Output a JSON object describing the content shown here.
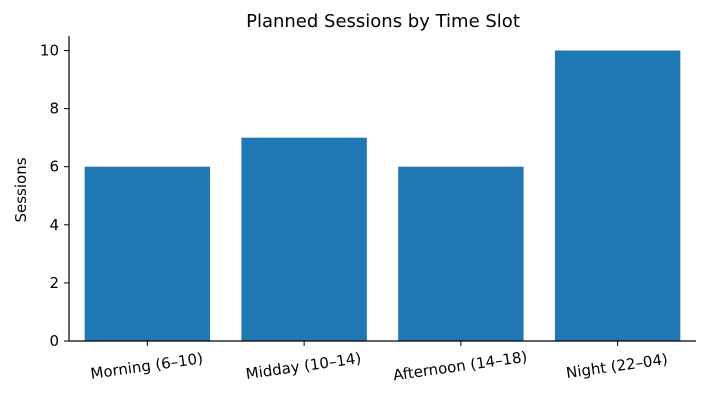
{
  "chart_data": {
    "type": "bar",
    "title": "Planned Sessions by Time Slot",
    "xlabel": "",
    "ylabel": "Sessions",
    "categories": [
      "Morning (6–10)",
      "Midday (10–14)",
      "Afternoon (14–18)",
      "Night (22–04)"
    ],
    "values": [
      6,
      7,
      6,
      10
    ],
    "ylim": [
      0,
      10.5
    ],
    "yticks": [
      0,
      2,
      4,
      6,
      8,
      10
    ],
    "bar_color": "#1f77b4",
    "grid": false,
    "legend": "none"
  }
}
